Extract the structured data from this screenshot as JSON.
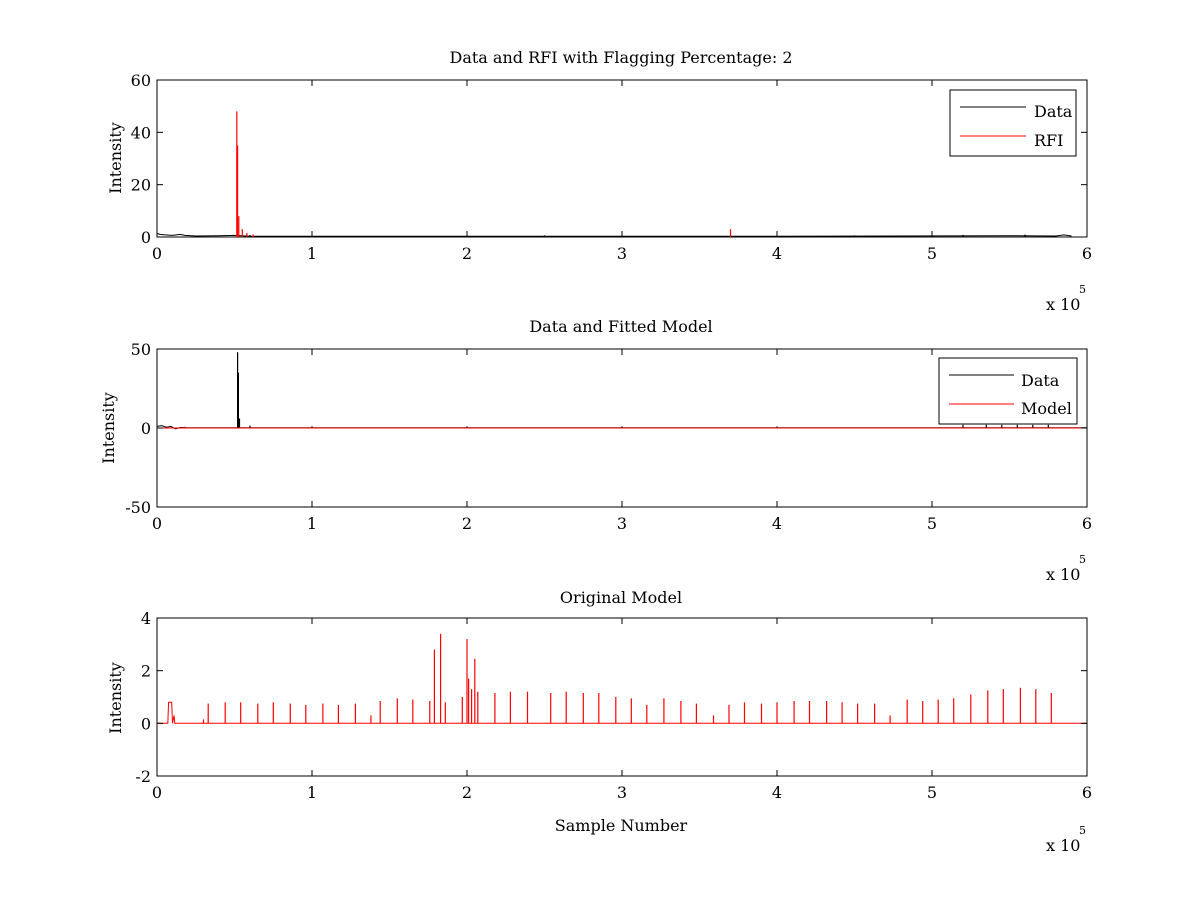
{
  "chart_data": [
    {
      "type": "line",
      "title": "Data and RFI with Flagging Percentage: 2",
      "xlabel": "",
      "ylabel": "Intensity",
      "xlim": [
        0,
        600000
      ],
      "ylim": [
        0,
        60
      ],
      "xticks": [
        0,
        1,
        2,
        3,
        4,
        5,
        6
      ],
      "yticks": [
        0,
        20,
        40,
        60
      ],
      "x_multiplier": "x 10",
      "x_multiplier_exp": "5",
      "grid": false,
      "legend": {
        "placement": "top-right",
        "entries": [
          "Data",
          "RFI"
        ]
      },
      "series": [
        {
          "name": "Data",
          "color": "#000000",
          "points": [
            [
              0,
              1.4
            ],
            [
              2000,
              1.0
            ],
            [
              5000,
              0.8
            ],
            [
              10000,
              0.6
            ],
            [
              15000,
              1.0
            ],
            [
              18000,
              0.6
            ],
            [
              25000,
              0.4
            ],
            [
              40000,
              0.5
            ],
            [
              50000,
              0.6
            ],
            [
              60000,
              0.3
            ],
            [
              200000,
              0.3
            ],
            [
              400000,
              0.3
            ],
            [
              550000,
              0.5
            ],
            [
              580000,
              0.4
            ],
            [
              585000,
              0.8
            ],
            [
              590000,
              0.4
            ]
          ],
          "spikes": [
            [
              60000,
              0.8
            ],
            [
              250000,
              0.6
            ],
            [
              300000,
              0.5
            ],
            [
              450000,
              0.6
            ],
            [
              520000,
              0.8
            ],
            [
              560000,
              0.9
            ]
          ]
        },
        {
          "name": "RFI",
          "color": "#ff0000",
          "points": [],
          "spikes": [
            [
              51500,
              48
            ],
            [
              52000,
              35
            ],
            [
              52800,
              8
            ],
            [
              55000,
              3
            ],
            [
              58000,
              1.5
            ],
            [
              62000,
              1
            ],
            [
              370000,
              3
            ]
          ]
        }
      ]
    },
    {
      "type": "line",
      "title": "Data and Fitted Model",
      "xlabel": "",
      "ylabel": "Intensity",
      "xlim": [
        0,
        600000
      ],
      "ylim": [
        -50,
        50
      ],
      "xticks": [
        0,
        1,
        2,
        3,
        4,
        5,
        6
      ],
      "yticks": [
        -50,
        0,
        50
      ],
      "x_multiplier": "x 10",
      "x_multiplier_exp": "5",
      "grid": false,
      "legend": {
        "placement": "top-right",
        "entries": [
          "Data",
          "Model"
        ]
      },
      "series": [
        {
          "name": "Data",
          "color": "#000000",
          "points": [
            [
              0,
              1.0
            ],
            [
              3000,
              1.5
            ],
            [
              6000,
              0.5
            ],
            [
              9000,
              1.0
            ],
            [
              12000,
              -0.5
            ],
            [
              15000,
              0.3
            ],
            [
              20000,
              0.2
            ],
            [
              600000,
              0.2
            ]
          ],
          "spikes": [
            [
              52000,
              48
            ],
            [
              52500,
              35
            ],
            [
              53200,
              6
            ],
            [
              60000,
              1.5
            ],
            [
              100000,
              1
            ],
            [
              200000,
              1
            ],
            [
              300000,
              1
            ],
            [
              400000,
              1
            ],
            [
              520000,
              2
            ],
            [
              535000,
              2
            ],
            [
              545000,
              2
            ],
            [
              555000,
              2
            ],
            [
              565000,
              2
            ],
            [
              575000,
              2
            ]
          ]
        },
        {
          "name": "Model",
          "color": "#ff0000",
          "points": [
            [
              0,
              0
            ],
            [
              600000,
              0
            ]
          ],
          "spikes": [
            [
              7000,
              0.8
            ],
            [
              18000,
              0.8
            ]
          ]
        }
      ]
    },
    {
      "type": "line",
      "title": "Original Model",
      "xlabel": "Sample Number",
      "ylabel": "Intensity",
      "xlim": [
        0,
        600000
      ],
      "ylim": [
        -2,
        4
      ],
      "xticks": [
        0,
        1,
        2,
        3,
        4,
        5,
        6
      ],
      "yticks": [
        -2,
        0,
        2,
        4
      ],
      "x_multiplier": "x 10",
      "x_multiplier_exp": "5",
      "grid": false,
      "legend": null,
      "series": [
        {
          "color": "#ff0000",
          "points": [
            [
              0,
              0
            ],
            [
              7000,
              0
            ],
            [
              7500,
              0.8
            ],
            [
              9500,
              0.8
            ],
            [
              10000,
              0
            ],
            [
              11000,
              0.3
            ],
            [
              11500,
              0
            ],
            [
              600000,
              0
            ]
          ],
          "spikes": [
            [
              30000,
              0.15
            ],
            [
              33000,
              0.75
            ],
            [
              44000,
              0.8
            ],
            [
              54000,
              0.8
            ],
            [
              65000,
              0.75
            ],
            [
              75000,
              0.8
            ],
            [
              86000,
              0.75
            ],
            [
              96000,
              0.7
            ],
            [
              107000,
              0.75
            ],
            [
              117000,
              0.7
            ],
            [
              128000,
              0.75
            ],
            [
              138000,
              0.3
            ],
            [
              144000,
              0.85
            ],
            [
              155000,
              0.95
            ],
            [
              165000,
              0.9
            ],
            [
              176000,
              0.85
            ],
            [
              179000,
              2.8
            ],
            [
              183000,
              3.4
            ],
            [
              186000,
              0.8
            ],
            [
              197000,
              1.0
            ],
            [
              200000,
              3.2
            ],
            [
              201000,
              1.7
            ],
            [
              203000,
              1.3
            ],
            [
              205000,
              2.45
            ],
            [
              207000,
              1.2
            ],
            [
              218000,
              1.15
            ],
            [
              228000,
              1.2
            ],
            [
              239000,
              1.2
            ],
            [
              254000,
              1.15
            ],
            [
              264000,
              1.2
            ],
            [
              275000,
              1.15
            ],
            [
              285000,
              1.15
            ],
            [
              296000,
              1.0
            ],
            [
              306000,
              0.95
            ],
            [
              316000,
              0.7
            ],
            [
              327000,
              0.95
            ],
            [
              338000,
              0.85
            ],
            [
              348000,
              0.75
            ],
            [
              359000,
              0.3
            ],
            [
              369000,
              0.7
            ],
            [
              379000,
              0.8
            ],
            [
              390000,
              0.75
            ],
            [
              400000,
              0.8
            ],
            [
              411000,
              0.85
            ],
            [
              421000,
              0.85
            ],
            [
              432000,
              0.85
            ],
            [
              442000,
              0.8
            ],
            [
              452000,
              0.75
            ],
            [
              463000,
              0.75
            ],
            [
              473000,
              0.3
            ],
            [
              484000,
              0.9
            ],
            [
              494000,
              0.85
            ],
            [
              504000,
              0.9
            ],
            [
              514000,
              0.95
            ],
            [
              525000,
              1.1
            ],
            [
              536000,
              1.25
            ],
            [
              546000,
              1.3
            ],
            [
              557000,
              1.35
            ],
            [
              567000,
              1.3
            ],
            [
              577000,
              1.15
            ]
          ]
        }
      ]
    }
  ]
}
